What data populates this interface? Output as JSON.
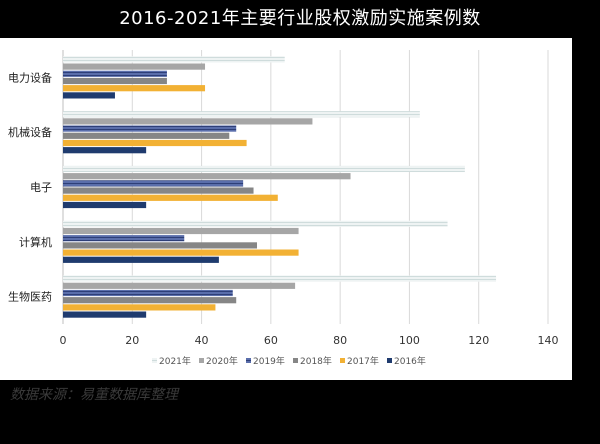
{
  "title": "2016-2021年主要行业股权激励实施案例数",
  "source": "数据来源：易董数据库整理",
  "chart_data": {
    "type": "bar",
    "orientation": "horizontal",
    "categories": [
      "电力设备",
      "机械设备",
      "电子",
      "计算机",
      "生物医药"
    ],
    "series": [
      {
        "name": "2021年",
        "values": [
          64,
          103,
          116,
          111,
          125
        ],
        "color": "#dde8e8",
        "pattern": "hstripe-light"
      },
      {
        "name": "2020年",
        "values": [
          41,
          72,
          83,
          68,
          67
        ],
        "color": "#a6a6a6",
        "pattern": "solid"
      },
      {
        "name": "2019年",
        "values": [
          30,
          50,
          52,
          35,
          49
        ],
        "color": "#4a5d9a",
        "pattern": "hstripe-dark"
      },
      {
        "name": "2018年",
        "values": [
          30,
          48,
          55,
          56,
          50
        ],
        "color": "#868686",
        "pattern": "solid"
      },
      {
        "name": "2017年",
        "values": [
          41,
          53,
          62,
          68,
          44
        ],
        "color": "#f2b134",
        "pattern": "solid"
      },
      {
        "name": "2016年",
        "values": [
          15,
          24,
          24,
          45,
          24
        ],
        "color": "#1f3b6e",
        "pattern": "solid"
      }
    ],
    "xlim": [
      0,
      140
    ],
    "xticks": [
      0,
      20,
      40,
      60,
      80,
      100,
      120,
      140
    ],
    "grid": "vertical",
    "legend_position": "bottom"
  }
}
